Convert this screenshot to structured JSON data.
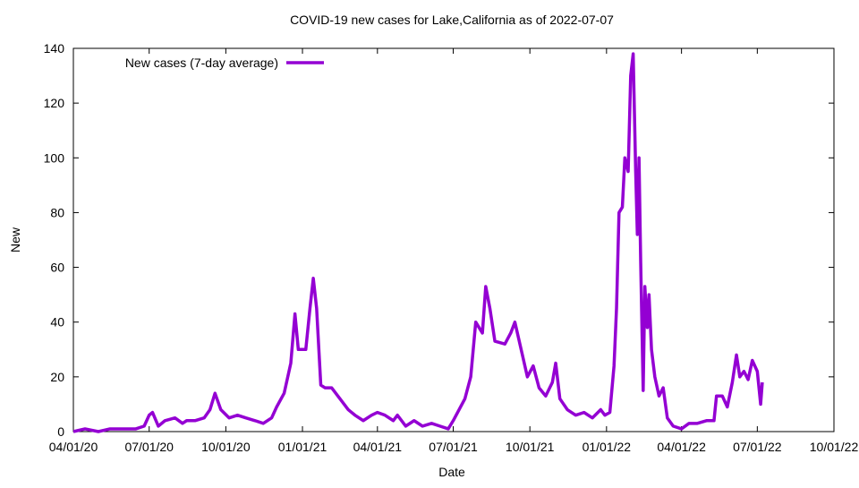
{
  "chart_data": {
    "type": "line",
    "title": "COVID-19 new cases for Lake,California as of 2022-07-07",
    "x_label": "Date",
    "y_label": "New",
    "xlim": [
      "2020-04-01",
      "2022-10-01"
    ],
    "xticks": [
      {
        "value": "2020-04-01",
        "label": "04/01/20"
      },
      {
        "value": "2020-07-01",
        "label": "07/01/20"
      },
      {
        "value": "2020-10-01",
        "label": "10/01/20"
      },
      {
        "value": "2021-01-01",
        "label": "01/01/21"
      },
      {
        "value": "2021-04-01",
        "label": "04/01/21"
      },
      {
        "value": "2021-07-01",
        "label": "07/01/21"
      },
      {
        "value": "2021-10-01",
        "label": "10/01/21"
      },
      {
        "value": "2022-01-01",
        "label": "01/01/22"
      },
      {
        "value": "2022-04-01",
        "label": "04/01/22"
      },
      {
        "value": "2022-07-01",
        "label": "07/01/22"
      },
      {
        "value": "2022-10-01",
        "label": "10/01/22"
      }
    ],
    "ylim": [
      0,
      140
    ],
    "yticks": [
      0,
      20,
      40,
      60,
      80,
      100,
      120,
      140
    ],
    "legend": "top-left",
    "x": [
      "2020-04-01",
      "2020-04-15",
      "2020-05-01",
      "2020-05-15",
      "2020-06-01",
      "2020-06-15",
      "2020-06-25",
      "2020-07-01",
      "2020-07-05",
      "2020-07-12",
      "2020-07-20",
      "2020-08-01",
      "2020-08-10",
      "2020-08-15",
      "2020-08-25",
      "2020-09-05",
      "2020-09-12",
      "2020-09-18",
      "2020-09-25",
      "2020-10-05",
      "2020-10-15",
      "2020-10-25",
      "2020-11-05",
      "2020-11-15",
      "2020-11-25",
      "2020-12-01",
      "2020-12-10",
      "2020-12-18",
      "2020-12-23",
      "2020-12-27",
      "2021-01-05",
      "2021-01-10",
      "2021-01-14",
      "2021-01-18",
      "2021-01-23",
      "2021-01-28",
      "2021-02-05",
      "2021-02-15",
      "2021-02-25",
      "2021-03-05",
      "2021-03-15",
      "2021-03-25",
      "2021-04-01",
      "2021-04-10",
      "2021-04-20",
      "2021-04-25",
      "2021-05-05",
      "2021-05-15",
      "2021-05-25",
      "2021-06-05",
      "2021-06-15",
      "2021-06-25",
      "2021-07-01",
      "2021-07-08",
      "2021-07-15",
      "2021-07-22",
      "2021-07-28",
      "2021-08-05",
      "2021-08-09",
      "2021-08-14",
      "2021-08-20",
      "2021-09-01",
      "2021-09-08",
      "2021-09-13",
      "2021-09-22",
      "2021-09-28",
      "2021-10-05",
      "2021-10-12",
      "2021-10-20",
      "2021-10-28",
      "2021-11-01",
      "2021-11-06",
      "2021-11-15",
      "2021-11-25",
      "2021-12-05",
      "2021-12-15",
      "2021-12-25",
      "2021-12-30",
      "2022-01-05",
      "2022-01-10",
      "2022-01-13",
      "2022-01-16",
      "2022-01-20",
      "2022-01-23",
      "2022-01-27",
      "2022-01-30",
      "2022-02-02",
      "2022-02-05",
      "2022-02-07",
      "2022-02-09",
      "2022-02-11",
      "2022-02-14",
      "2022-02-16",
      "2022-02-19",
      "2022-02-21",
      "2022-02-24",
      "2022-02-28",
      "2022-03-05",
      "2022-03-10",
      "2022-03-15",
      "2022-03-22",
      "2022-04-01",
      "2022-04-10",
      "2022-04-20",
      "2022-05-01",
      "2022-05-10",
      "2022-05-13",
      "2022-05-20",
      "2022-05-26",
      "2022-06-01",
      "2022-06-06",
      "2022-06-10",
      "2022-06-15",
      "2022-06-20",
      "2022-06-25",
      "2022-07-01",
      "2022-07-05",
      "2022-07-07"
    ],
    "series": [
      {
        "name": "New cases (7-day average)",
        "color": "#9400d3",
        "values": [
          0,
          1,
          0,
          1,
          1,
          1,
          2,
          6,
          7,
          2,
          4,
          5,
          3,
          4,
          4,
          5,
          8,
          14,
          8,
          5,
          6,
          5,
          4,
          3,
          5,
          9,
          14,
          25,
          43,
          30,
          30,
          45,
          56,
          45,
          17,
          16,
          16,
          12,
          8,
          6,
          4,
          6,
          7,
          6,
          4,
          6,
          2,
          4,
          2,
          3,
          2,
          1,
          4,
          8,
          12,
          20,
          40,
          36,
          53,
          45,
          33,
          32,
          36,
          40,
          28,
          20,
          24,
          16,
          13,
          18,
          25,
          12,
          8,
          6,
          7,
          5,
          8,
          6,
          7,
          24,
          45,
          80,
          82,
          100,
          95,
          130,
          138,
          95,
          72,
          100,
          62,
          15,
          53,
          38,
          50,
          30,
          20,
          13,
          16,
          5,
          2,
          1,
          3,
          3,
          4,
          4,
          13,
          13,
          9,
          18,
          28,
          20,
          22,
          19,
          26,
          22,
          10,
          18
        ]
      }
    ]
  }
}
